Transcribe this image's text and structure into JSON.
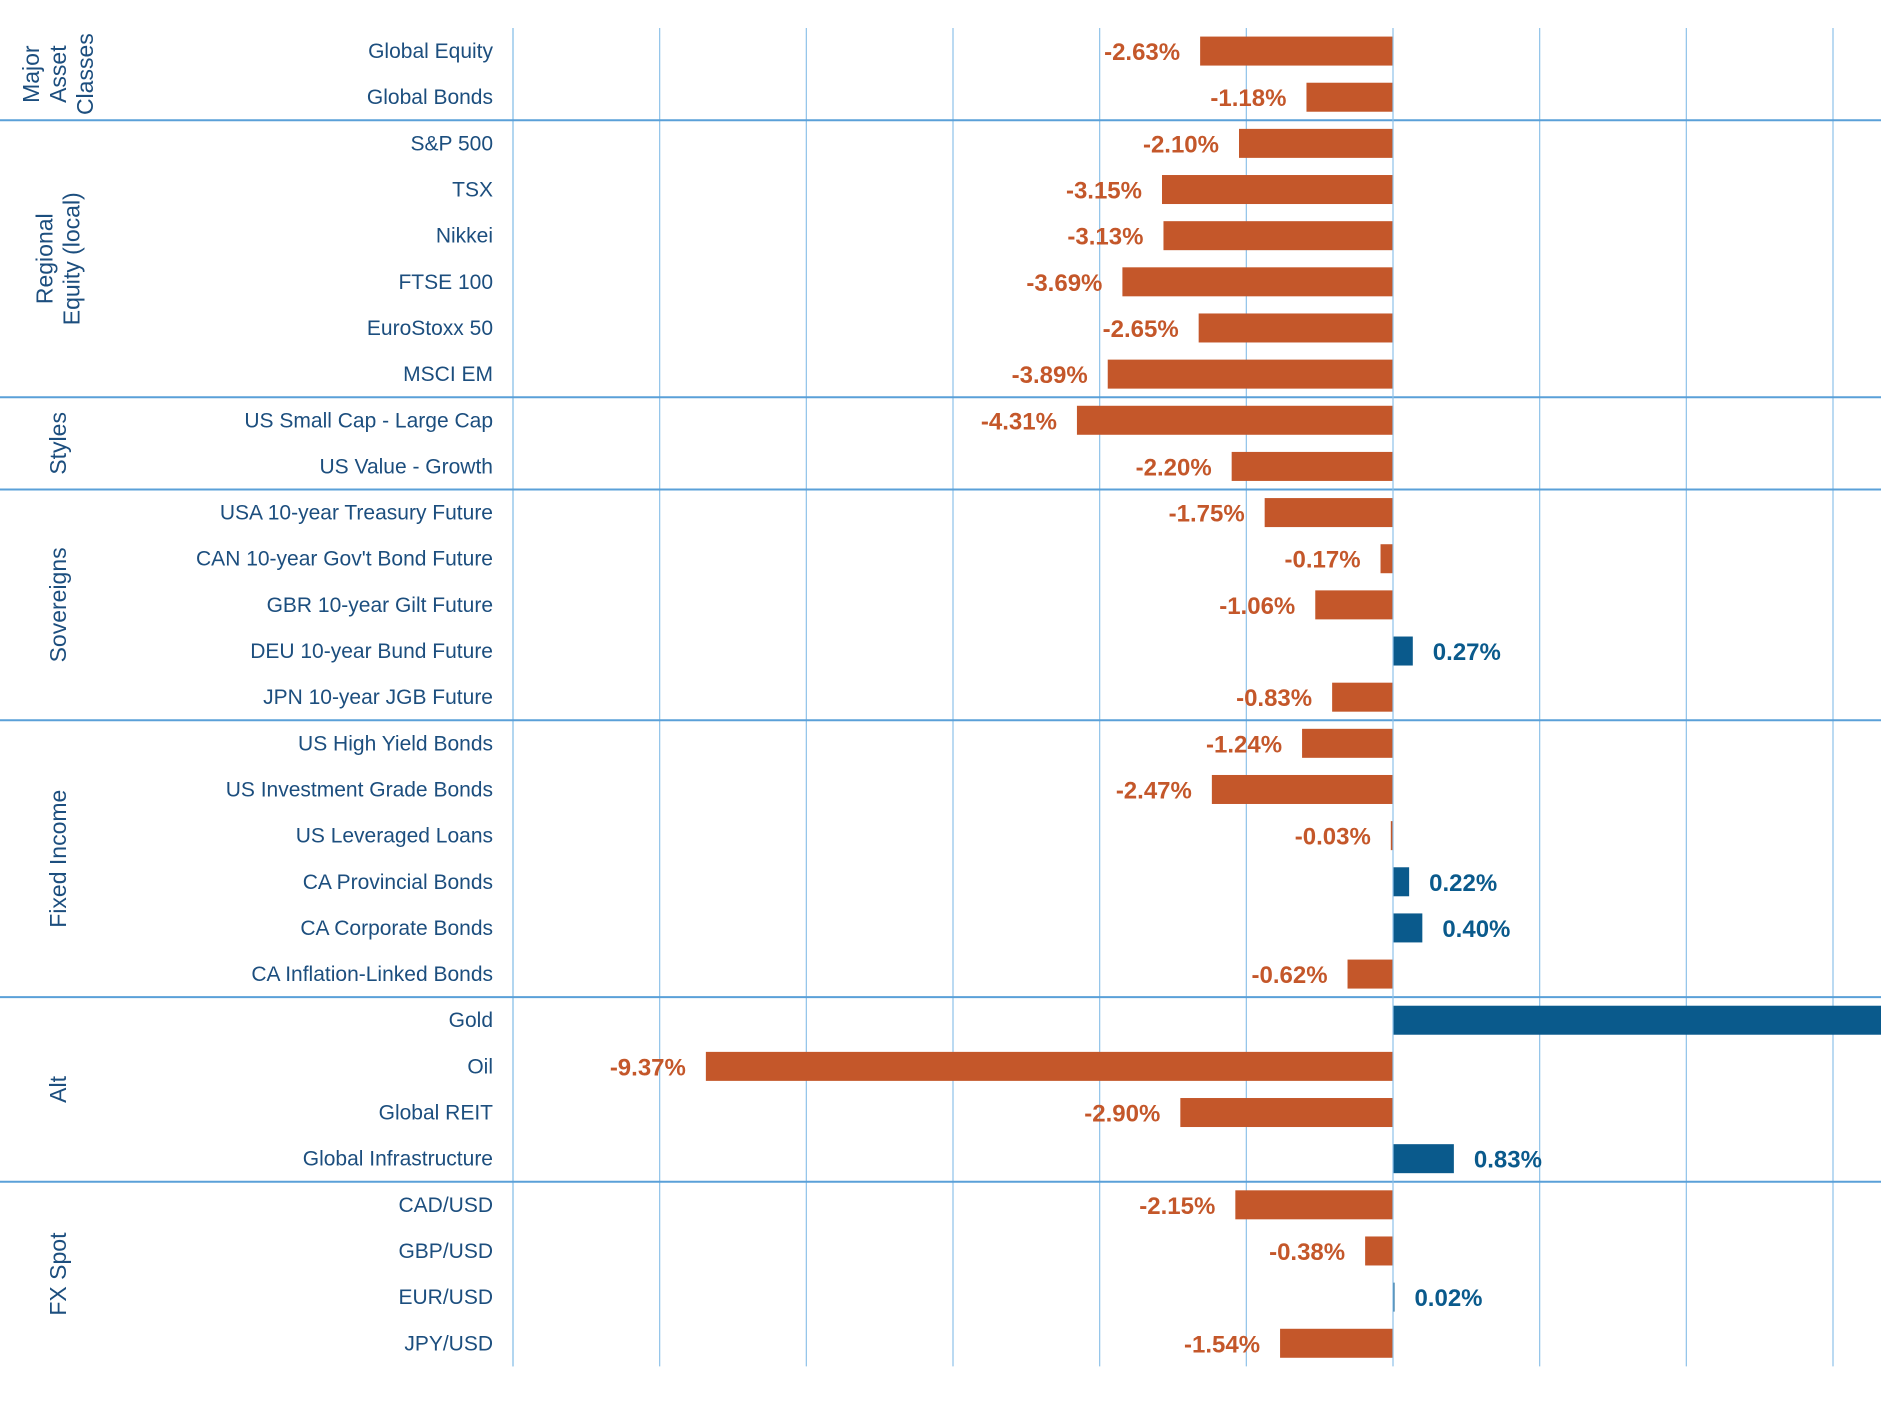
{
  "chart_data": {
    "type": "bar",
    "orientation": "horizontal",
    "value_suffix": "%",
    "xlim": [
      -12,
      6
    ],
    "grid": true,
    "colors": {
      "positive": "#0a5a8c",
      "negative": "#c4572a",
      "grid": "#8ec2e8",
      "separator": "#5aa0d8",
      "text": "#1c4e7e"
    },
    "groups": [
      {
        "name": "Major Asset Classes",
        "lines": [
          "Major",
          "Asset",
          "Classes"
        ],
        "items": [
          {
            "label": "Global Equity",
            "value": -2.63
          },
          {
            "label": "Global Bonds",
            "value": -1.18
          }
        ]
      },
      {
        "name": "Regional Equity (local)",
        "lines": [
          "Regional",
          "Equity (local)"
        ],
        "items": [
          {
            "label": "S&P 500",
            "value": -2.1
          },
          {
            "label": "TSX",
            "value": -3.15
          },
          {
            "label": "Nikkei",
            "value": -3.13
          },
          {
            "label": "FTSE 100",
            "value": -3.69
          },
          {
            "label": "EuroStoxx 50",
            "value": -2.65
          },
          {
            "label": "MSCI EM",
            "value": -3.89
          }
        ]
      },
      {
        "name": "Styles",
        "lines": [
          "Styles"
        ],
        "items": [
          {
            "label": "US Small Cap - Large Cap",
            "value": -4.31
          },
          {
            "label": "US Value - Growth",
            "value": -2.2
          }
        ]
      },
      {
        "name": "Sovereigns",
        "lines": [
          "Sovereigns"
        ],
        "items": [
          {
            "label": "USA 10-year Treasury Future",
            "value": -1.75
          },
          {
            "label": "CAN 10-year Gov't Bond Future",
            "value": -0.17
          },
          {
            "label": "GBR 10-year Gilt Future",
            "value": -1.06
          },
          {
            "label": "DEU 10-year Bund Future",
            "value": 0.27
          },
          {
            "label": "JPN 10-year JGB Future",
            "value": -0.83
          }
        ]
      },
      {
        "name": "Fixed Income",
        "lines": [
          "Fixed Income"
        ],
        "items": [
          {
            "label": "US High Yield Bonds",
            "value": -1.24
          },
          {
            "label": "US Investment Grade Bonds",
            "value": -2.47
          },
          {
            "label": "US Leveraged Loans",
            "value": -0.03
          },
          {
            "label": "CA Provincial Bonds",
            "value": 0.22
          },
          {
            "label": "CA Corporate Bonds",
            "value": 0.4
          },
          {
            "label": "CA Inflation-Linked Bonds",
            "value": -0.62
          }
        ]
      },
      {
        "name": "Alt",
        "lines": [
          "Alt"
        ],
        "items": [
          {
            "label": "Gold",
            "value": 7.32
          },
          {
            "label": "Oil",
            "value": -9.37
          },
          {
            "label": "Global REIT",
            "value": -2.9
          },
          {
            "label": "Global Infrastructure",
            "value": 0.83
          }
        ]
      },
      {
        "name": "FX Spot",
        "lines": [
          "FX Spot"
        ],
        "items": [
          {
            "label": "CAD/USD",
            "value": -2.15
          },
          {
            "label": "GBP/USD",
            "value": -0.38
          },
          {
            "label": "EUR/USD",
            "value": 0.02
          },
          {
            "label": "JPY/USD",
            "value": -1.54
          }
        ]
      }
    ]
  }
}
